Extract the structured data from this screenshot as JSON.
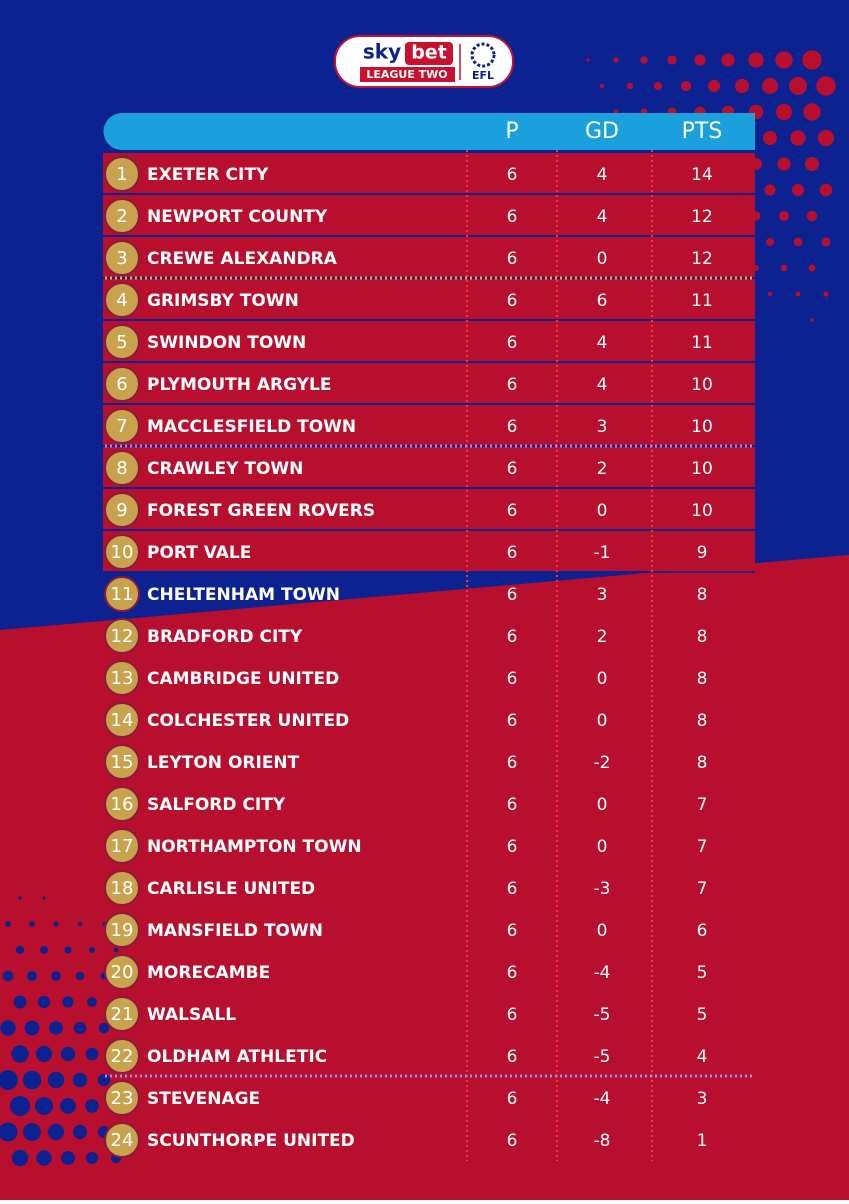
{
  "header": {
    "sponsor_sky": "sky",
    "sponsor_bet": "bet",
    "league": "LEAGUE TWO",
    "efl": "EFL"
  },
  "table": {
    "columns": [
      "P",
      "GD",
      "PTS"
    ],
    "rows": [
      [
        1,
        "EXETER CITY",
        6,
        4,
        14
      ],
      [
        2,
        "NEWPORT COUNTY",
        6,
        4,
        12
      ],
      [
        3,
        "CREWE ALEXANDRA",
        6,
        0,
        12
      ],
      [
        4,
        "GRIMSBY TOWN",
        6,
        6,
        11
      ],
      [
        5,
        "SWINDON TOWN",
        6,
        4,
        11
      ],
      [
        6,
        "PLYMOUTH ARGYLE",
        6,
        4,
        10
      ],
      [
        7,
        "MACCLESFIELD TOWN",
        6,
        3,
        10
      ],
      [
        8,
        "CRAWLEY TOWN",
        6,
        2,
        10
      ],
      [
        9,
        "FOREST GREEN ROVERS",
        6,
        0,
        10
      ],
      [
        10,
        "PORT VALE",
        6,
        -1,
        9
      ],
      [
        11,
        "CHELTENHAM TOWN",
        6,
        3,
        8
      ],
      [
        12,
        "BRADFORD CITY",
        6,
        2,
        8
      ],
      [
        13,
        "CAMBRIDGE UNITED",
        6,
        0,
        8
      ],
      [
        14,
        "COLCHESTER UNITED",
        6,
        0,
        8
      ],
      [
        15,
        "LEYTON ORIENT",
        6,
        -2,
        8
      ],
      [
        16,
        "SALFORD CITY",
        6,
        0,
        7
      ],
      [
        17,
        "NORTHAMPTON TOWN",
        6,
        0,
        7
      ],
      [
        18,
        "CARLISLE UNITED",
        6,
        -3,
        7
      ],
      [
        19,
        "MANSFIELD TOWN",
        6,
        0,
        6
      ],
      [
        20,
        "MORECAMBE",
        6,
        -4,
        5
      ],
      [
        21,
        "WALSALL",
        6,
        -5,
        5
      ],
      [
        22,
        "OLDHAM ATHLETIC",
        6,
        -5,
        4
      ],
      [
        23,
        "STEVENAGE",
        6,
        -4,
        3
      ],
      [
        24,
        "SCUNTHORPE UNITED",
        6,
        -8,
        1
      ]
    ]
  }
}
